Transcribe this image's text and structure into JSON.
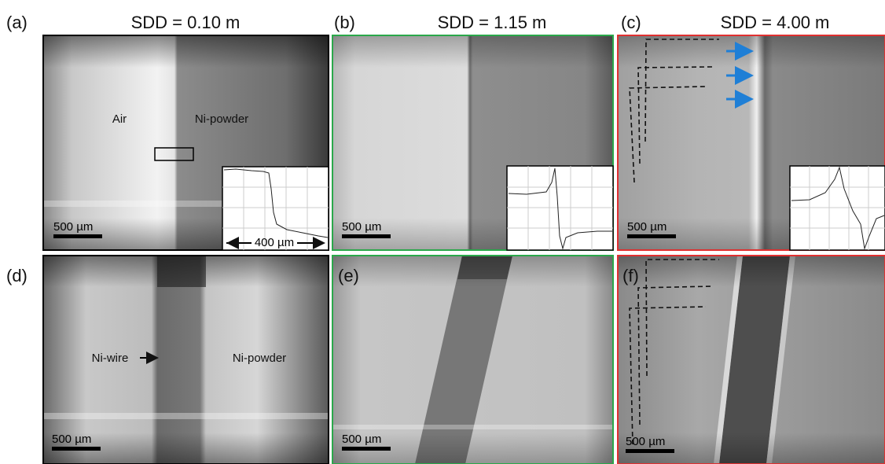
{
  "column_titles": [
    "SDD = 0.10 m",
    "SDD = 1.15 m",
    "SDD = 4.00 m"
  ],
  "panels": [
    {
      "label": "(a)",
      "scale_bar": "500 µm",
      "annotations": [
        "Air",
        "Ni-powder"
      ],
      "inset_width": "400 µm"
    },
    {
      "label": "(b)",
      "scale_bar": "500 µm"
    },
    {
      "label": "(c)",
      "scale_bar": "500 µm"
    },
    {
      "label": "(d)",
      "scale_bar": "500 µm",
      "annotations": [
        "Ni-wire",
        "Ni-powder"
      ]
    },
    {
      "label": "(e)",
      "scale_bar": "500 µm"
    },
    {
      "label": "(f)",
      "scale_bar": "500 µm"
    }
  ]
}
